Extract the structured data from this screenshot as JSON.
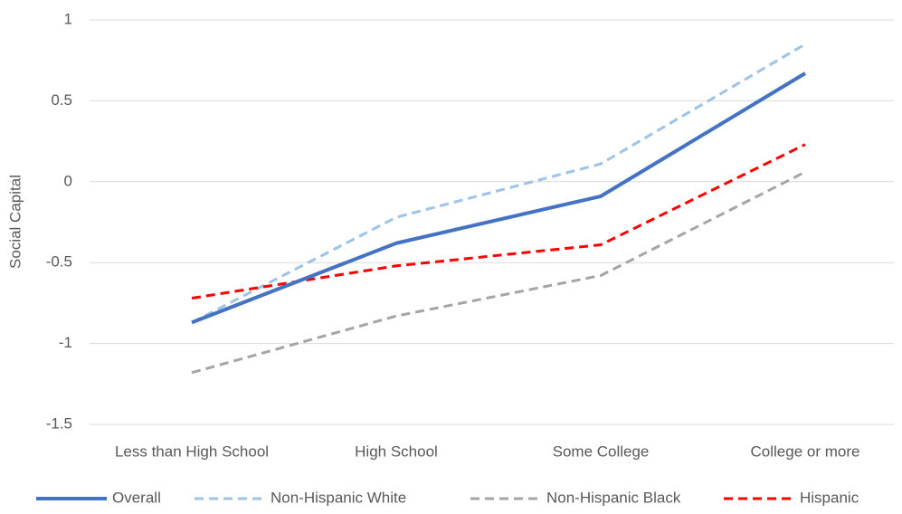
{
  "chart_data": {
    "type": "line",
    "y_label": "Social Capital",
    "categories": [
      "Less than High School",
      "High School",
      "Some College",
      "College or more"
    ],
    "series": [
      {
        "name": "Overall",
        "color": "#4472c4",
        "dashed": false,
        "values": [
          -0.87,
          -0.38,
          -0.09,
          0.67
        ]
      },
      {
        "name": "Non-Hispanic White",
        "color": "#9dc3e6",
        "dashed": true,
        "values": [
          -0.87,
          -0.22,
          0.11,
          0.85
        ]
      },
      {
        "name": "Non-Hispanic Black",
        "color": "#a5a5a5",
        "dashed": true,
        "values": [
          -1.18,
          -0.83,
          -0.58,
          0.06
        ]
      },
      {
        "name": "Hispanic",
        "color": "#ff0000",
        "dashed": true,
        "values": [
          -0.72,
          -0.52,
          -0.39,
          0.23
        ]
      }
    ],
    "ylim": [
      -1.5,
      1
    ],
    "yticks": [
      -1.5,
      -1,
      -0.5,
      0,
      0.5,
      1
    ],
    "grid": true,
    "legend": "bottom"
  }
}
